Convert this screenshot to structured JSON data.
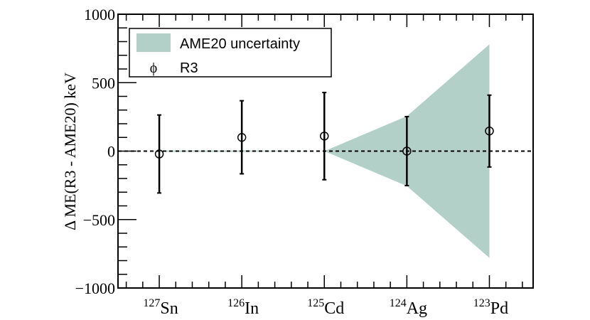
{
  "chart_data": {
    "type": "scatter",
    "title": "",
    "xlabel": "",
    "ylabel": "Δ ME(R3 - AME20) keV",
    "ylim": [
      -1000,
      1000
    ],
    "xlim": [
      -0.5,
      4.53
    ],
    "yticks": [
      1000,
      500,
      0,
      -500,
      -1000
    ],
    "ytick_labels": [
      "1000",
      "500",
      "0",
      "−500",
      "−1000"
    ],
    "categories": [
      {
        "mass": "127",
        "element": "Sn"
      },
      {
        "mass": "126",
        "element": "In"
      },
      {
        "mass": "125",
        "element": "Cd"
      },
      {
        "mass": "124",
        "element": "Ag"
      },
      {
        "mass": "123",
        "element": "Pd"
      }
    ],
    "series": [
      {
        "name": "R3",
        "values": [
          -21,
          100,
          110,
          0,
          147
        ],
        "err_up": [
          285,
          268,
          318,
          252,
          262
        ],
        "err_down": [
          285,
          266,
          319,
          252,
          263
        ]
      },
      {
        "name": "AME20 uncertainty",
        "band": [
          5,
          5,
          0,
          255,
          780
        ]
      }
    ],
    "reference_line": 0,
    "legend": {
      "placement": "top-left",
      "entries": [
        "AME20 uncertainty",
        "R3"
      ],
      "marker_glyph": "ϕ"
    },
    "colors": {
      "band": "#b2d0c8",
      "points": "#000000"
    }
  }
}
